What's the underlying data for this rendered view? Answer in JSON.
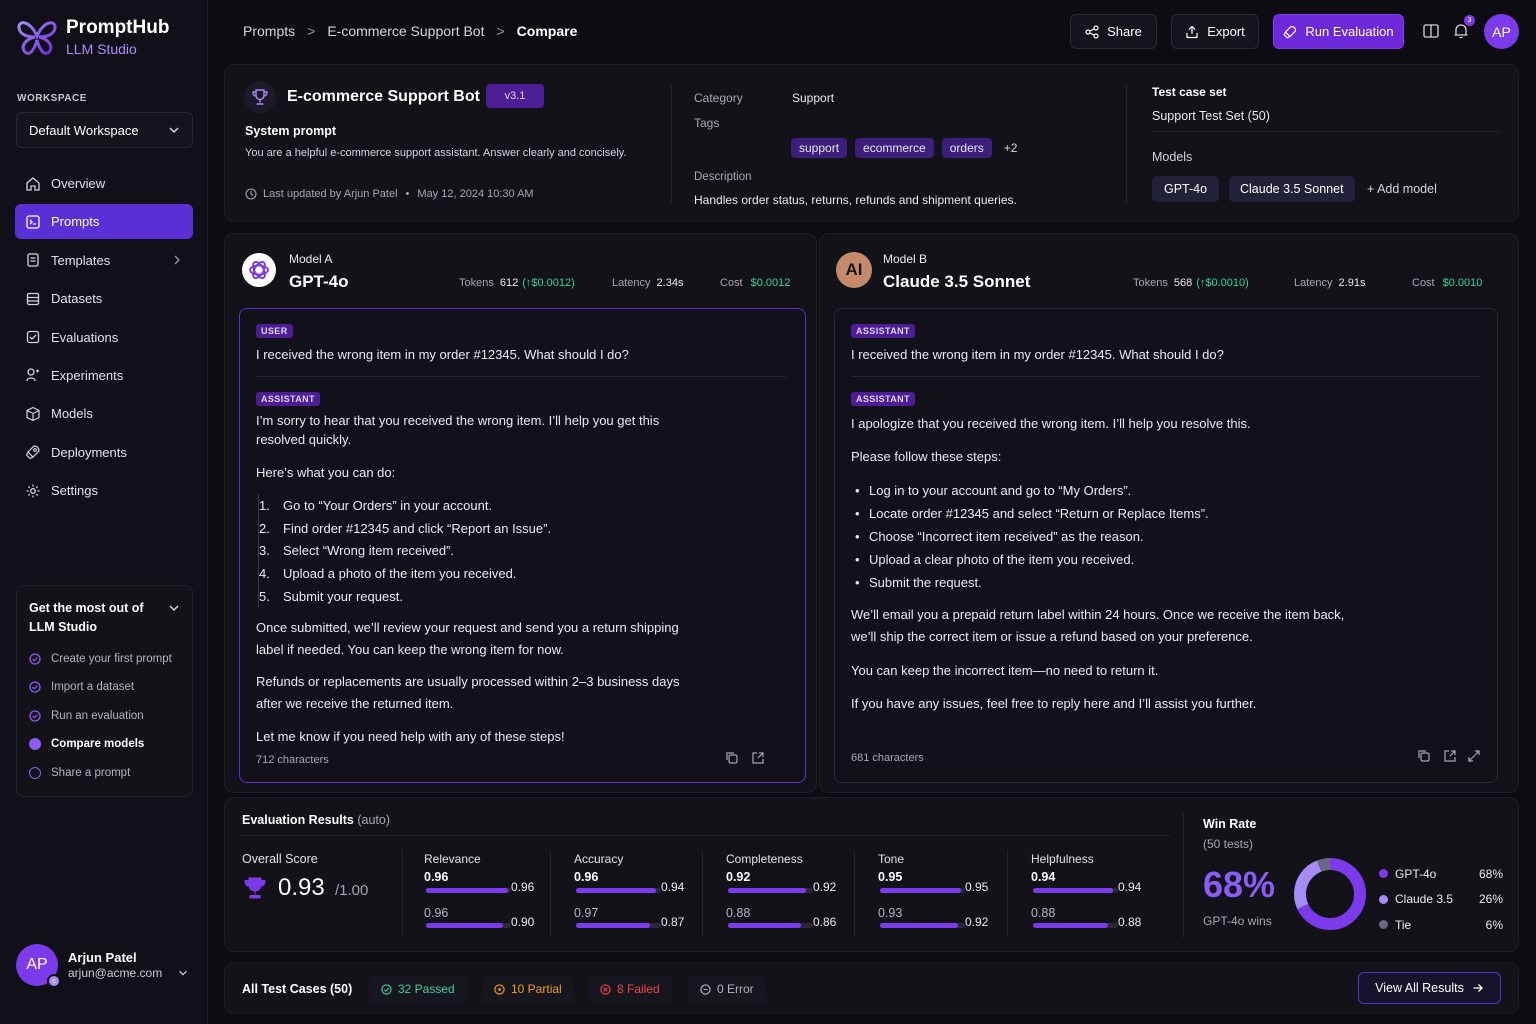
{
  "app": {
    "name": "PromptHub",
    "subtitle": "LLM Studio"
  },
  "workspace": {
    "label": "WORKSPACE",
    "selected": "Default Workspace"
  },
  "nav": [
    {
      "label": "Overview",
      "icon": "home-icon"
    },
    {
      "label": "Prompts",
      "icon": "prompt-icon",
      "active": true
    },
    {
      "label": "Templates",
      "icon": "template-icon"
    },
    {
      "label": "Datasets",
      "icon": "dataset-icon"
    },
    {
      "label": "Evaluations",
      "icon": "evaluation-icon"
    },
    {
      "label": "Experiments",
      "icon": "experiment-icon"
    },
    {
      "label": "Models",
      "icon": "cube-icon"
    },
    {
      "label": "Deployments",
      "icon": "rocket-icon"
    },
    {
      "label": "Settings",
      "icon": "gear-icon"
    }
  ],
  "guide": {
    "title": "Get the most out of LLM Studio",
    "items": [
      {
        "label": "Create your first prompt",
        "state": "done"
      },
      {
        "label": "Import a dataset",
        "state": "done"
      },
      {
        "label": "Run an evaluation",
        "state": "done"
      },
      {
        "label": "Compare models",
        "state": "current"
      },
      {
        "label": "Share a prompt",
        "state": "todo"
      }
    ]
  },
  "user": {
    "initials": "AP",
    "name": "Arjun Patel",
    "email": "arjun@acme.com"
  },
  "breadcrumb": [
    "Prompts",
    "E-commerce Support Bot",
    "Compare"
  ],
  "toolbar": {
    "share": "Share",
    "export": "Export",
    "run": "Run Evaluation",
    "notifications": "3",
    "avatar": "AP"
  },
  "prompt": {
    "title": "E-commerce Support Bot",
    "badge": "v3.1",
    "system_label": "System prompt",
    "system_text": "You are a helpful e-commerce support assistant. Answer clearly and concisely.",
    "updated": "Last updated by Arjun Patel",
    "updated_date": "May 12, 2024 10:30 AM",
    "category_label": "Category",
    "category": "Support",
    "tags_label": "Tags",
    "tags": [
      "support",
      "ecommerce",
      "orders"
    ],
    "tags_more": "+2",
    "desc_label": "Description",
    "description": "Handles order status, returns, refunds and shipment queries.",
    "testset_label": "Test case set",
    "testset": "Support Test Set (50)",
    "models_label": "Models",
    "models": [
      "GPT-4o",
      "Claude 3.5 Sonnet"
    ],
    "add_model": "+ Add model"
  },
  "model_a": {
    "label": "Model A",
    "name": "GPT-4o",
    "tokens_label": "Tokens",
    "tokens": "612",
    "tokens_delta": "(↑$0.0012)",
    "latency_label": "Latency",
    "latency": "2.34s",
    "cost_label": "Cost",
    "cost": "$0.0012",
    "user_role": "USER",
    "user_msg": "I received the wrong item in my order #12345. What should I do?",
    "assistant_role": "ASSISTANT",
    "p1": "I’m sorry to hear that you received the wrong item. I’ll help you get this resolved quickly.",
    "p2": "Here’s what you can do:",
    "steps": [
      "Go to “Your Orders” in your account.",
      "Find order #12345 and click “Report an Issue”.",
      "Select “Wrong item received”.",
      "Upload a photo of the item you received.",
      "Submit your request."
    ],
    "p3": "Once submitted, we’ll review your request and send you a return shipping label if needed. You can keep the wrong item for now.",
    "p4": "Refunds or replacements are usually processed within 2–3 business days after we receive the returned item.",
    "p5": "Let me know if you need help with any of these steps!",
    "chars": "712 characters"
  },
  "model_b": {
    "label": "Model B",
    "name": "Claude 3.5 Sonnet",
    "logo": "AI",
    "tokens_label": "Tokens",
    "tokens": "568",
    "tokens_delta": "(↑$0.0010)",
    "latency_label": "Latency",
    "latency": "2.91s",
    "cost_label": "Cost",
    "cost": "$0.0010",
    "user_role": "ASSISTANT",
    "user_msg": "I received the wrong item in my order #12345. What should I do?",
    "assistant_role": "ASSISTANT",
    "p1": "I apologize that you received the wrong item. I’ll help you resolve this.",
    "p2": "Please follow these steps:",
    "steps": [
      "Log in to your account and go to “My Orders”.",
      "Locate order #12345 and select “Return or Replace Items”.",
      "Choose “Incorrect item received” as the reason.",
      "Upload a clear photo of the item you received.",
      "Submit the request."
    ],
    "p3": "We’ll email you a prepaid return label within 24 hours. Once we receive the item back, we’ll ship the correct item or issue a refund based on your preference.",
    "p4": "You can keep the incorrect item—no need to return it.",
    "p5": "If you have any issues, feel free to reply here and I’ll assist you further.",
    "chars": "681 characters"
  },
  "eval": {
    "title": "Evaluation Results",
    "title_suffix": "(auto)",
    "overall_label": "Overall Score",
    "overall": "0.93",
    "overall_max": "/1.00",
    "metrics": [
      {
        "name": "Relevance",
        "a": 0.96,
        "b": 0.9
      },
      {
        "name": "Accuracy",
        "a": 0.96,
        "b": 0.94,
        "a2": 0.97,
        "b2": 0.87
      },
      {
        "name": "Completeness",
        "a": 0.92,
        "b": 0.92,
        "a2": 0.88,
        "b2": 0.86
      },
      {
        "name": "Tone",
        "a": 0.95,
        "b": 0.95,
        "a2": 0.93,
        "b2": 0.92
      },
      {
        "name": "Helpfulness",
        "a": 0.94,
        "b": 0.94,
        "a2": 0.88,
        "b2": 0.88
      }
    ]
  },
  "winrate": {
    "title": "Win Rate",
    "sub": "(50 tests)",
    "big": "68%",
    "caption": "GPT-4o wins",
    "legend": [
      {
        "name": "GPT-4o",
        "pct": "68%",
        "value": 68,
        "color": "#7c3aed"
      },
      {
        "name": "Claude 3.5",
        "pct": "26%",
        "value": 26,
        "color": "#a78bfa"
      },
      {
        "name": "Tie",
        "pct": "6%",
        "value": 6,
        "color": "#6b6880"
      }
    ]
  },
  "tests": {
    "title": "All Test Cases (50)",
    "passed": "32 Passed",
    "partial": "10 Partial",
    "failed": "8 Failed",
    "error": "0 Error",
    "view_all": "View All Results"
  }
}
